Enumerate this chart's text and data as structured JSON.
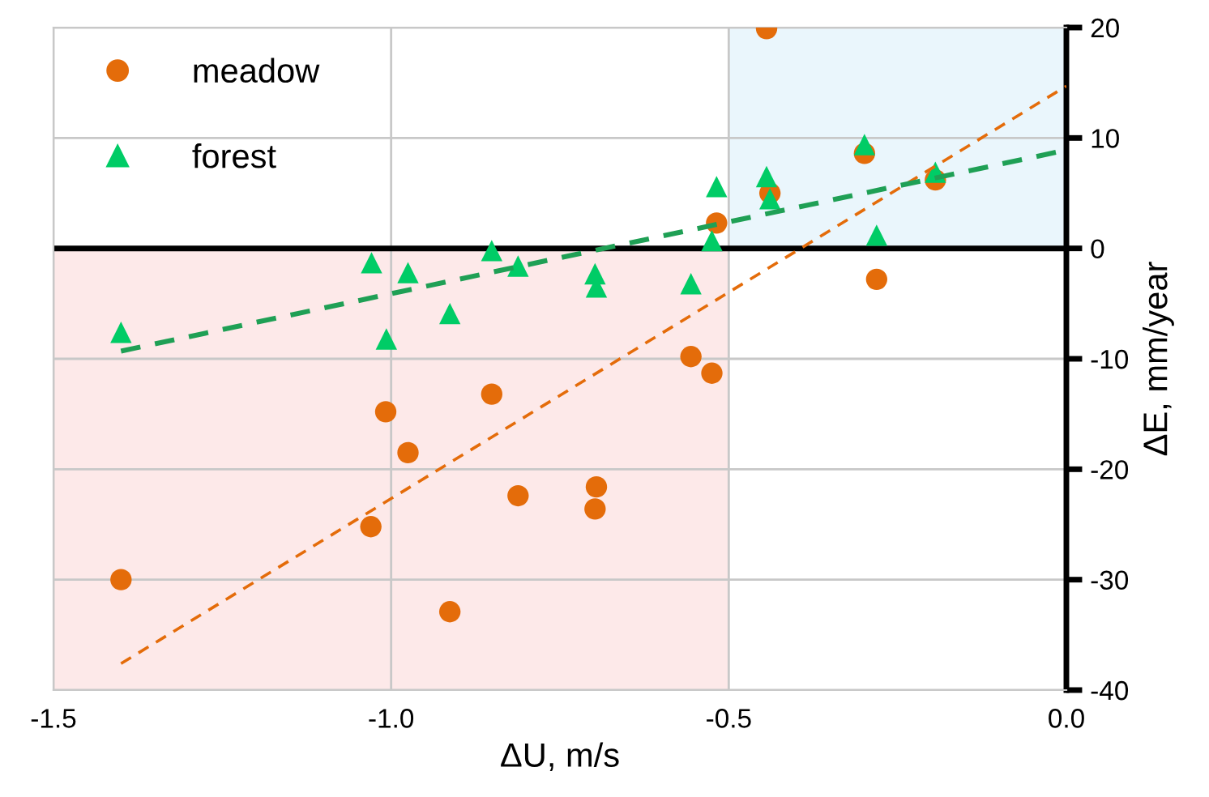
{
  "chart_data": {
    "type": "scatter",
    "xlabel": "ΔU, m/s",
    "ylabel": "ΔE, mm/year",
    "xlim": [
      -1.5,
      0.0
    ],
    "xticks": [
      {
        "value": -1.5,
        "label": "-1.5"
      },
      {
        "value": -1.0,
        "label": "-1.0"
      },
      {
        "value": -0.5,
        "label": "-0.5"
      },
      {
        "value": 0.0,
        "label": "0.0"
      }
    ],
    "ylim": [
      -40,
      20
    ],
    "yticks": [
      -40,
      -30,
      -20,
      -10,
      0,
      10,
      20
    ],
    "grid": true,
    "legend": "top left",
    "series": [
      {
        "type": "area",
        "color": "#fde9e9",
        "x": [
          -1.5,
          -0.5
        ],
        "values": [
          -40,
          -40
        ]
      },
      {
        "type": "area",
        "color": "#eaf6fc",
        "x": [
          -0.5,
          0.0
        ],
        "values": [
          20,
          20
        ]
      },
      {
        "name": "meadow",
        "color": "#e46c0a",
        "marker": "circle",
        "x": [
          -1.4,
          -1.008,
          -0.975,
          -1.03,
          -0.851,
          -0.812,
          -0.913,
          -0.556,
          -0.525,
          -0.696,
          -0.698,
          -0.518,
          -0.444,
          -0.439,
          -0.299,
          -0.194,
          -0.281
        ],
        "values": [
          -30.0,
          -14.8,
          -18.5,
          -25.2,
          -13.2,
          -22.4,
          -32.9,
          -9.8,
          -11.3,
          -21.6,
          -23.6,
          2.3,
          19.9,
          5.0,
          8.6,
          6.2,
          -2.8
        ]
      },
      {
        "name": "forest",
        "color": "#00cc66",
        "marker": "triangle",
        "x": [
          -1.4,
          -1.029,
          -0.975,
          -1.007,
          -0.913,
          -0.851,
          -0.812,
          -0.698,
          -0.696,
          -0.556,
          -0.518,
          -0.525,
          -0.444,
          -0.439,
          -0.299,
          -0.194,
          -0.281
        ],
        "values": [
          -7.6,
          -1.3,
          -2.2,
          -8.2,
          -5.9,
          -0.2,
          -1.6,
          -2.3,
          -3.5,
          -3.2,
          5.6,
          0.7,
          6.5,
          4.5,
          9.4,
          6.9,
          1.2
        ]
      },
      {
        "type": "line",
        "color": "#e46c0a",
        "line_style": "dashed",
        "x": [
          -1.4,
          0.0
        ],
        "values": [
          -37.6,
          14.7
        ]
      },
      {
        "type": "line",
        "color": "#1fa055",
        "line_style": "dashed",
        "x": [
          -1.4,
          0.0
        ],
        "values": [
          -9.3,
          8.9
        ]
      }
    ],
    "ref_lines": [
      {
        "axis": "y",
        "value": 0,
        "color": "#000000"
      }
    ]
  }
}
